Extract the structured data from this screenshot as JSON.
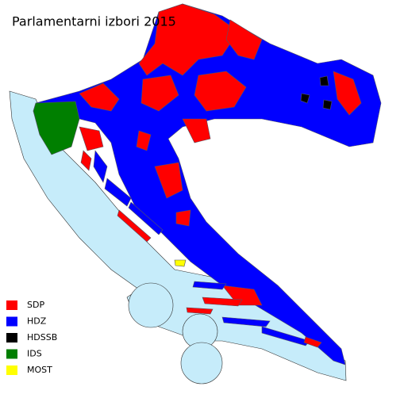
{
  "title": "Parlamentarni izbori 2015",
  "legend": [
    {
      "name": "SDP",
      "color": "#ff0000"
    },
    {
      "name": "HDZ",
      "color": "#0000ff"
    },
    {
      "name": "HDSSB",
      "color": "#000000"
    },
    {
      "name": "IDS",
      "color": "#007f00"
    },
    {
      "name": "MOST",
      "color": "#ffff00"
    }
  ]
}
